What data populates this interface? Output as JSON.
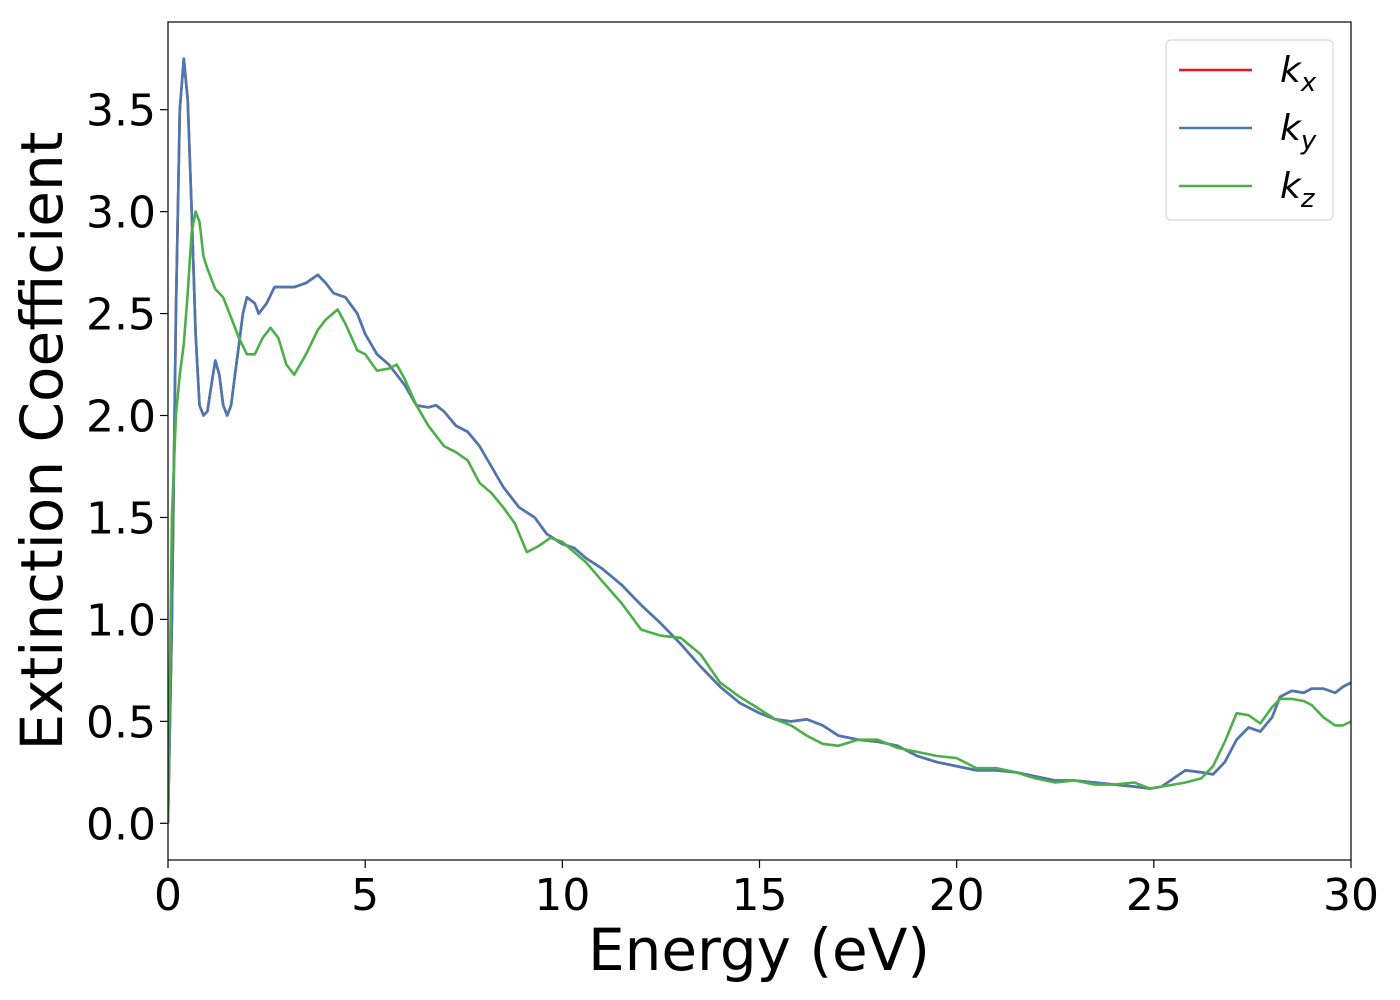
{
  "chart_data": {
    "type": "line",
    "title": "",
    "xlabel": "Energy (eV)",
    "ylabel": "Extinction Coefficient",
    "xlim": [
      0,
      30
    ],
    "ylim": [
      -0.18,
      3.93
    ],
    "xticks": [
      0,
      5,
      10,
      15,
      20,
      25,
      30
    ],
    "xtick_labels": [
      "0",
      "5",
      "10",
      "15",
      "20",
      "25",
      "30"
    ],
    "yticks": [
      0.0,
      0.5,
      1.0,
      1.5,
      2.0,
      2.5,
      3.0,
      3.5
    ],
    "ytick_labels": [
      "0.0",
      "0.5",
      "1.0",
      "1.5",
      "2.0",
      "2.5",
      "3.0",
      "3.5"
    ],
    "grid": false,
    "legend_position": "top-right",
    "series": [
      {
        "name": "k_x",
        "label_main": "k",
        "label_sub": "x",
        "color": "#e41a1c",
        "x": [
          0,
          0.1,
          0.2,
          0.3,
          0.4,
          0.5,
          0.6,
          0.7,
          0.8,
          0.9,
          1.0,
          1.1,
          1.2,
          1.3,
          1.4,
          1.5,
          1.6,
          1.7,
          1.8,
          1.9,
          2.0,
          2.2,
          2.3,
          2.5,
          2.7,
          3.0,
          3.2,
          3.5,
          3.8,
          4.0,
          4.2,
          4.5,
          4.8,
          5.0,
          5.3,
          5.6,
          6.0,
          6.3,
          6.6,
          6.8,
          7.0,
          7.3,
          7.6,
          7.9,
          8.2,
          8.5,
          8.9,
          9.3,
          9.6,
          10.0,
          10.3,
          10.6,
          11.0,
          11.5,
          12.0,
          12.5,
          13.0,
          13.5,
          14.0,
          14.5,
          15.0,
          15.4,
          15.8,
          16.2,
          16.6,
          17.0,
          17.5,
          18.0,
          18.5,
          19.0,
          19.5,
          20.0,
          20.5,
          21.0,
          21.5,
          22.0,
          22.5,
          23.0,
          23.5,
          24.0,
          24.5,
          24.9,
          25.2,
          25.5,
          25.8,
          26.2,
          26.5,
          26.8,
          27.1,
          27.4,
          27.7,
          28.0,
          28.2,
          28.5,
          28.8,
          29.0,
          29.3,
          29.6,
          29.8,
          30.0
        ],
        "y": [
          0.0,
          1.0,
          2.5,
          3.5,
          3.75,
          3.55,
          3.0,
          2.4,
          2.05,
          2.0,
          2.02,
          2.15,
          2.27,
          2.2,
          2.05,
          2.0,
          2.05,
          2.2,
          2.35,
          2.5,
          2.58,
          2.55,
          2.5,
          2.55,
          2.63,
          2.63,
          2.63,
          2.65,
          2.69,
          2.65,
          2.6,
          2.58,
          2.5,
          2.4,
          2.3,
          2.25,
          2.15,
          2.05,
          2.04,
          2.05,
          2.02,
          1.95,
          1.92,
          1.85,
          1.75,
          1.65,
          1.55,
          1.5,
          1.42,
          1.37,
          1.35,
          1.3,
          1.25,
          1.17,
          1.07,
          0.98,
          0.88,
          0.77,
          0.67,
          0.59,
          0.54,
          0.51,
          0.5,
          0.51,
          0.48,
          0.43,
          0.41,
          0.4,
          0.38,
          0.33,
          0.3,
          0.28,
          0.26,
          0.26,
          0.25,
          0.23,
          0.21,
          0.21,
          0.2,
          0.19,
          0.18,
          0.17,
          0.18,
          0.22,
          0.26,
          0.25,
          0.24,
          0.3,
          0.41,
          0.47,
          0.45,
          0.52,
          0.62,
          0.65,
          0.64,
          0.66,
          0.66,
          0.64,
          0.67,
          0.69
        ]
      },
      {
        "name": "k_y",
        "label_main": "k",
        "label_sub": "y",
        "color": "#4a78b0",
        "x": [
          0,
          0.1,
          0.2,
          0.3,
          0.4,
          0.5,
          0.6,
          0.7,
          0.8,
          0.9,
          1.0,
          1.1,
          1.2,
          1.3,
          1.4,
          1.5,
          1.6,
          1.7,
          1.8,
          1.9,
          2.0,
          2.2,
          2.3,
          2.5,
          2.7,
          3.0,
          3.2,
          3.5,
          3.8,
          4.0,
          4.2,
          4.5,
          4.8,
          5.0,
          5.3,
          5.6,
          6.0,
          6.3,
          6.6,
          6.8,
          7.0,
          7.3,
          7.6,
          7.9,
          8.2,
          8.5,
          8.9,
          9.3,
          9.6,
          10.0,
          10.3,
          10.6,
          11.0,
          11.5,
          12.0,
          12.5,
          13.0,
          13.5,
          14.0,
          14.5,
          15.0,
          15.4,
          15.8,
          16.2,
          16.6,
          17.0,
          17.5,
          18.0,
          18.5,
          19.0,
          19.5,
          20.0,
          20.5,
          21.0,
          21.5,
          22.0,
          22.5,
          23.0,
          23.5,
          24.0,
          24.5,
          24.9,
          25.2,
          25.5,
          25.8,
          26.2,
          26.5,
          26.8,
          27.1,
          27.4,
          27.7,
          28.0,
          28.2,
          28.5,
          28.8,
          29.0,
          29.3,
          29.6,
          29.8,
          30.0
        ],
        "y": [
          0.0,
          1.0,
          2.5,
          3.5,
          3.75,
          3.55,
          3.0,
          2.4,
          2.05,
          2.0,
          2.02,
          2.15,
          2.27,
          2.2,
          2.05,
          2.0,
          2.05,
          2.2,
          2.35,
          2.5,
          2.58,
          2.55,
          2.5,
          2.55,
          2.63,
          2.63,
          2.63,
          2.65,
          2.69,
          2.65,
          2.6,
          2.58,
          2.5,
          2.4,
          2.3,
          2.25,
          2.15,
          2.05,
          2.04,
          2.05,
          2.02,
          1.95,
          1.92,
          1.85,
          1.75,
          1.65,
          1.55,
          1.5,
          1.42,
          1.37,
          1.35,
          1.3,
          1.25,
          1.17,
          1.07,
          0.98,
          0.88,
          0.77,
          0.67,
          0.59,
          0.54,
          0.51,
          0.5,
          0.51,
          0.48,
          0.43,
          0.41,
          0.4,
          0.38,
          0.33,
          0.3,
          0.28,
          0.26,
          0.26,
          0.25,
          0.23,
          0.21,
          0.21,
          0.2,
          0.19,
          0.18,
          0.17,
          0.18,
          0.22,
          0.26,
          0.25,
          0.24,
          0.3,
          0.41,
          0.47,
          0.45,
          0.52,
          0.62,
          0.65,
          0.64,
          0.66,
          0.66,
          0.64,
          0.67,
          0.69
        ]
      },
      {
        "name": "k_z",
        "label_main": "k",
        "label_sub": "z",
        "color": "#4daf4a",
        "x": [
          0,
          0.1,
          0.2,
          0.3,
          0.4,
          0.5,
          0.6,
          0.7,
          0.8,
          0.9,
          1.0,
          1.2,
          1.4,
          1.6,
          1.8,
          2.0,
          2.2,
          2.4,
          2.6,
          2.8,
          3.0,
          3.2,
          3.5,
          3.8,
          4.0,
          4.3,
          4.5,
          4.8,
          5.0,
          5.3,
          5.6,
          5.8,
          6.0,
          6.3,
          6.6,
          7.0,
          7.3,
          7.6,
          7.9,
          8.2,
          8.5,
          8.8,
          9.1,
          9.4,
          9.7,
          10.0,
          10.3,
          10.6,
          11.0,
          11.5,
          12.0,
          12.5,
          13.0,
          13.5,
          14.0,
          14.5,
          15.0,
          15.4,
          15.8,
          16.2,
          16.6,
          17.0,
          17.5,
          18.0,
          18.5,
          19.0,
          19.5,
          20.0,
          20.5,
          21.0,
          21.5,
          22.0,
          22.5,
          23.0,
          23.5,
          24.0,
          24.5,
          24.9,
          25.2,
          25.5,
          25.8,
          26.2,
          26.5,
          26.8,
          27.1,
          27.4,
          27.7,
          28.0,
          28.2,
          28.5,
          28.8,
          29.0,
          29.3,
          29.6,
          29.8,
          30.0
        ],
        "y": [
          0.0,
          1.5,
          2.0,
          2.2,
          2.35,
          2.6,
          2.9,
          3.0,
          2.95,
          2.78,
          2.72,
          2.62,
          2.58,
          2.48,
          2.38,
          2.3,
          2.3,
          2.38,
          2.43,
          2.38,
          2.25,
          2.2,
          2.3,
          2.42,
          2.47,
          2.52,
          2.45,
          2.32,
          2.3,
          2.22,
          2.23,
          2.25,
          2.18,
          2.05,
          1.95,
          1.85,
          1.82,
          1.78,
          1.67,
          1.62,
          1.55,
          1.47,
          1.33,
          1.36,
          1.4,
          1.38,
          1.33,
          1.28,
          1.19,
          1.08,
          0.95,
          0.92,
          0.91,
          0.83,
          0.69,
          0.62,
          0.56,
          0.51,
          0.48,
          0.43,
          0.39,
          0.38,
          0.41,
          0.41,
          0.37,
          0.35,
          0.33,
          0.32,
          0.27,
          0.27,
          0.25,
          0.22,
          0.2,
          0.21,
          0.19,
          0.19,
          0.2,
          0.17,
          0.18,
          0.19,
          0.2,
          0.22,
          0.28,
          0.4,
          0.54,
          0.53,
          0.49,
          0.57,
          0.61,
          0.61,
          0.6,
          0.58,
          0.52,
          0.48,
          0.48,
          0.5
        ]
      }
    ]
  }
}
